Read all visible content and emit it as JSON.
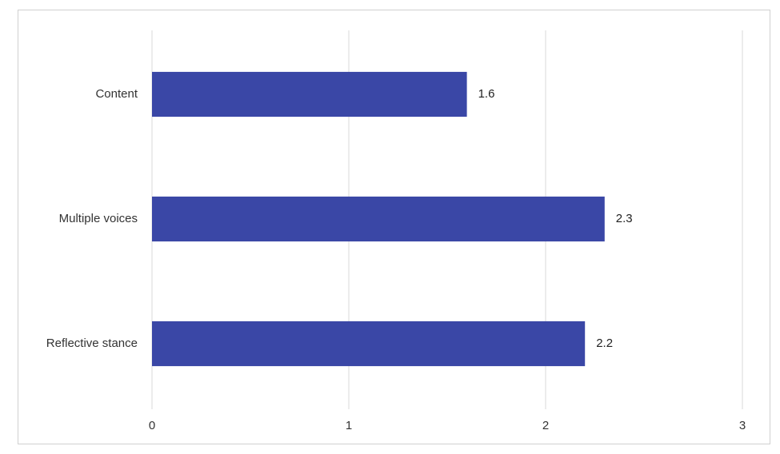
{
  "chart_data": {
    "type": "bar",
    "orientation": "horizontal",
    "categories": [
      "Content",
      "Multiple voices",
      "Reflective stance"
    ],
    "values": [
      1.6,
      2.3,
      2.2
    ],
    "color": "#3a47a6",
    "xlim": [
      0,
      3
    ],
    "xticks": [
      0,
      1,
      2,
      3
    ],
    "grid": true
  }
}
